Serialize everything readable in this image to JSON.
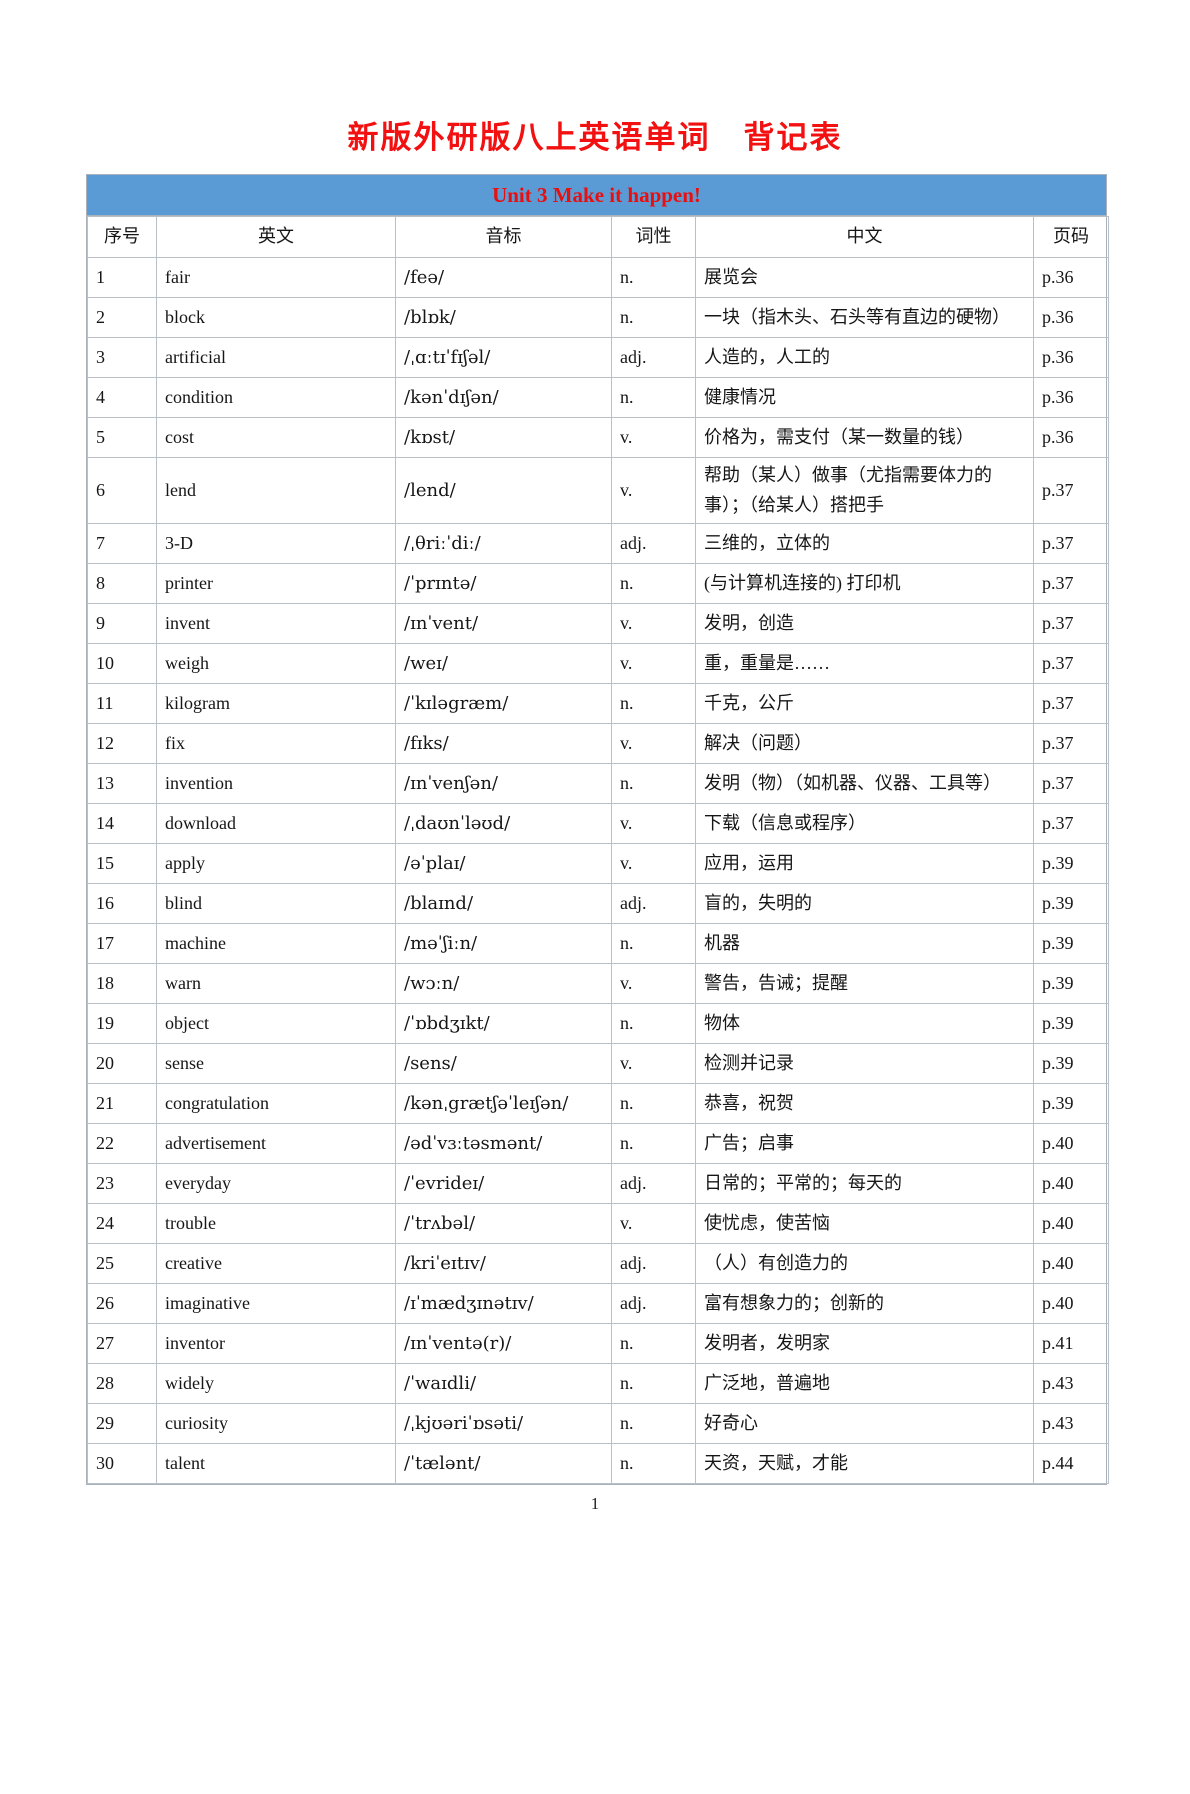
{
  "page": {
    "title": "新版外研版八上英语单词　背记表",
    "footer_page_number": "1"
  },
  "colors": {
    "banner_background": "#5b9bd5",
    "title_red": "#f21010",
    "unit_red": "#e80f0f",
    "border_gray": "#b9bfc6"
  },
  "table": {
    "unit_title": "Unit 3 Make it happen!",
    "columns": [
      "序号",
      "英文",
      "音标",
      "词性",
      "中文",
      "页码"
    ],
    "rows": [
      {
        "no": "1",
        "en": "fair",
        "ipa": "/feə/",
        "pos": "n.",
        "cn": "展览会",
        "page": "p.36"
      },
      {
        "no": "2",
        "en": "block",
        "ipa": "/blɒk/",
        "pos": "n.",
        "cn": "一块（指木头、石头等有直边的硬物）",
        "page": "p.36"
      },
      {
        "no": "3",
        "en": "artificial",
        "ipa": "/ˌɑːtɪˈfɪʃəl/",
        "pos": "adj.",
        "cn": "人造的，人工的",
        "page": "p.36"
      },
      {
        "no": "4",
        "en": "condition",
        "ipa": "/kənˈdɪʃən/",
        "pos": "n.",
        "cn": "健康情况",
        "page": "p.36"
      },
      {
        "no": "5",
        "en": "cost",
        "ipa": "/kɒst/",
        "pos": "v.",
        "cn": "价格为，需支付（某一数量的钱）",
        "page": "p.36"
      },
      {
        "no": "6",
        "en": "lend",
        "ipa": "/lend/",
        "pos": "v.",
        "cn": "帮助（某人）做事（尤指需要体力的事）；（给某人）搭把手",
        "page": "p.37"
      },
      {
        "no": "7",
        "en": "3-D",
        "ipa": "/ˌθriːˈdiː/",
        "pos": "adj.",
        "cn": "三维的，立体的",
        "page": "p.37"
      },
      {
        "no": "8",
        "en": "printer",
        "ipa": "/ˈprɪntə/",
        "pos": "n.",
        "cn": "(与计算机连接的) 打印机",
        "page": "p.37"
      },
      {
        "no": "9",
        "en": "invent",
        "ipa": "/ɪnˈvent/",
        "pos": "v.",
        "cn": "发明，创造",
        "page": "p.37"
      },
      {
        "no": "10",
        "en": "weigh",
        "ipa": "/weɪ/",
        "pos": "v.",
        "cn": "重，重量是……",
        "page": "p.37"
      },
      {
        "no": "11",
        "en": "kilogram",
        "ipa": "/ˈkɪləgræm/",
        "pos": "n.",
        "cn": "千克，公斤",
        "page": "p.37"
      },
      {
        "no": "12",
        "en": "fix",
        "ipa": "/fɪks/",
        "pos": "v.",
        "cn": "解决（问题）",
        "page": "p.37"
      },
      {
        "no": "13",
        "en": "invention",
        "ipa": "/ɪnˈvenʃən/",
        "pos": "n.",
        "cn": "发明（物）（如机器、仪器、工具等）",
        "page": "p.37"
      },
      {
        "no": "14",
        "en": "download",
        "ipa": "/ˌdaʊnˈləʊd/",
        "pos": "v.",
        "cn": "下载（信息或程序）",
        "page": "p.37"
      },
      {
        "no": "15",
        "en": "apply",
        "ipa": "/əˈplaɪ/",
        "pos": "v.",
        "cn": "应用，运用",
        "page": "p.39"
      },
      {
        "no": "16",
        "en": "blind",
        "ipa": "/blaɪnd/",
        "pos": "adj.",
        "cn": "盲的，失明的",
        "page": "p.39"
      },
      {
        "no": "17",
        "en": "machine",
        "ipa": "/məˈʃiːn/",
        "pos": "n.",
        "cn": "机器",
        "page": "p.39"
      },
      {
        "no": "18",
        "en": "warn",
        "ipa": "/wɔːn/",
        "pos": "v.",
        "cn": "警告，告诫；提醒",
        "page": "p.39"
      },
      {
        "no": "19",
        "en": "object",
        "ipa": "/ˈɒbdʒɪkt/",
        "pos": "n.",
        "cn": "物体",
        "page": "p.39"
      },
      {
        "no": "20",
        "en": "sense",
        "ipa": "/sens/",
        "pos": "v.",
        "cn": "检测并记录",
        "page": "p.39"
      },
      {
        "no": "21",
        "en": "congratulation",
        "ipa": "/kənˌgrætʃəˈleɪʃən/",
        "pos": "n.",
        "cn": "恭喜，祝贺",
        "page": "p.39"
      },
      {
        "no": "22",
        "en": "advertisement",
        "ipa": "/ədˈvɜːtəsmənt/",
        "pos": "n.",
        "cn": "广告；启事",
        "page": "p.40"
      },
      {
        "no": "23",
        "en": "everyday",
        "ipa": "/ˈevrideɪ/",
        "pos": "adj.",
        "cn": "日常的；平常的；每天的",
        "page": "p.40"
      },
      {
        "no": "24",
        "en": "trouble",
        "ipa": "/ˈtrʌbəl/",
        "pos": "v.",
        "cn": "使忧虑，使苦恼",
        "page": "p.40"
      },
      {
        "no": "25",
        "en": "creative",
        "ipa": "/kriˈeɪtɪv/",
        "pos": "adj.",
        "cn": "（人）有创造力的",
        "page": "p.40"
      },
      {
        "no": "26",
        "en": "imaginative",
        "ipa": "/ɪˈmædʒɪnətɪv/",
        "pos": "adj.",
        "cn": "富有想象力的；创新的",
        "page": "p.40"
      },
      {
        "no": "27",
        "en": "inventor",
        "ipa": "/ɪnˈventə(r)/",
        "pos": "n.",
        "cn": "发明者，发明家",
        "page": "p.41"
      },
      {
        "no": "28",
        "en": "widely",
        "ipa": "/ˈwaɪdli/",
        "pos": "n.",
        "cn": "广泛地，普遍地",
        "page": "p.43"
      },
      {
        "no": "29",
        "en": "curiosity",
        "ipa": "/ˌkjʊəriˈɒsəti/",
        "pos": "n.",
        "cn": "好奇心",
        "page": "p.43"
      },
      {
        "no": "30",
        "en": "talent",
        "ipa": "/ˈtælənt/",
        "pos": "n.",
        "cn": "天资，天赋，才能",
        "page": "p.44"
      }
    ]
  }
}
